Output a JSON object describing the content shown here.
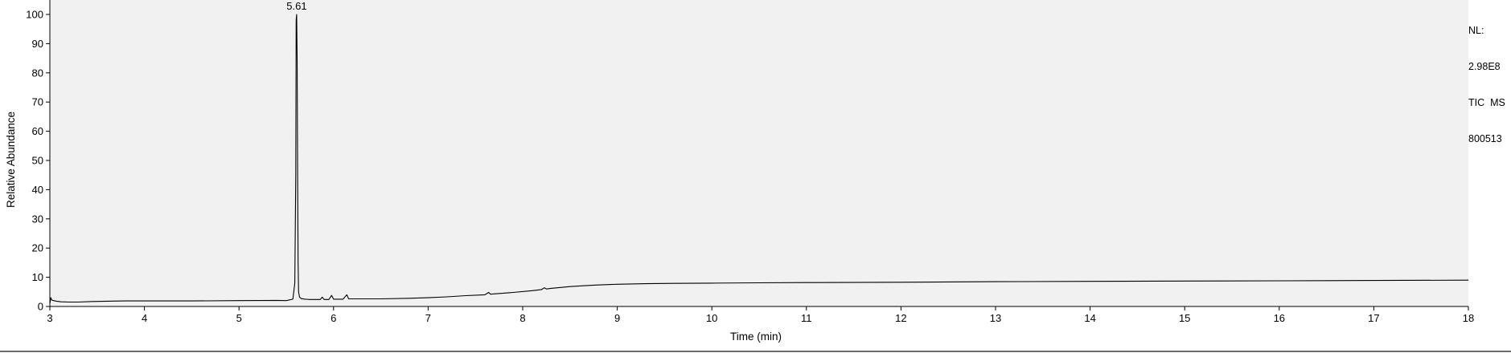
{
  "chart_data": {
    "type": "line",
    "xlabel": "Time (min)",
    "ylabel": "Relative Abundance",
    "xlim": [
      3,
      18
    ],
    "ylim": [
      0,
      100
    ],
    "x_ticks": [
      3,
      4,
      5,
      6,
      7,
      8,
      9,
      10,
      11,
      12,
      13,
      14,
      15,
      16,
      17,
      18
    ],
    "y_ticks": [
      0,
      10,
      20,
      30,
      40,
      50,
      60,
      70,
      80,
      90,
      100
    ],
    "peak_annotations": [
      {
        "x": 5.61,
        "label": "5.61"
      }
    ],
    "series": [
      {
        "x": [
          3.0,
          3.01,
          3.02,
          3.04,
          3.07,
          3.12,
          3.2,
          3.3,
          3.45,
          3.8,
          4.5,
          5.0,
          5.4,
          5.5,
          5.57,
          5.59,
          5.6,
          5.605,
          5.61,
          5.615,
          5.62,
          5.625,
          5.63,
          5.64,
          5.66,
          5.7,
          5.75,
          5.8,
          5.86,
          5.88,
          5.9,
          5.95,
          5.98,
          6.0,
          6.02,
          6.1,
          6.14,
          6.16,
          6.18,
          6.3,
          6.5,
          6.8,
          7.0,
          7.2,
          7.4,
          7.6,
          7.64,
          7.66,
          7.7,
          7.9,
          8.1,
          8.2,
          8.23,
          8.25,
          8.3,
          8.5,
          8.75,
          9.0,
          9.3,
          9.6,
          10.0,
          10.5,
          11.0,
          12.0,
          13.0,
          14.0,
          15.0,
          16.0,
          17.0,
          18.0
        ],
        "y": [
          1.0,
          3.0,
          2.2,
          2.0,
          1.8,
          1.6,
          1.5,
          1.5,
          1.7,
          1.9,
          1.9,
          2.0,
          2.1,
          2.0,
          2.5,
          8.0,
          45.0,
          98.0,
          100.0,
          85.0,
          45.0,
          15.0,
          5.0,
          3.2,
          2.7,
          2.5,
          2.4,
          2.4,
          2.4,
          3.2,
          2.4,
          2.4,
          3.8,
          2.5,
          2.5,
          2.5,
          4.0,
          2.6,
          2.6,
          2.6,
          2.6,
          2.8,
          3.0,
          3.3,
          3.7,
          4.0,
          4.8,
          4.2,
          4.3,
          4.8,
          5.4,
          5.8,
          6.4,
          6.0,
          6.2,
          6.8,
          7.3,
          7.6,
          7.8,
          7.9,
          8.0,
          8.1,
          8.2,
          8.3,
          8.5,
          8.6,
          8.7,
          8.8,
          8.9,
          9.0
        ]
      }
    ]
  },
  "instrument_info": {
    "nl_label": "NL:",
    "nl_value": "2.98E8",
    "trace_type": "TIC  MS",
    "sample_id": "800513"
  }
}
